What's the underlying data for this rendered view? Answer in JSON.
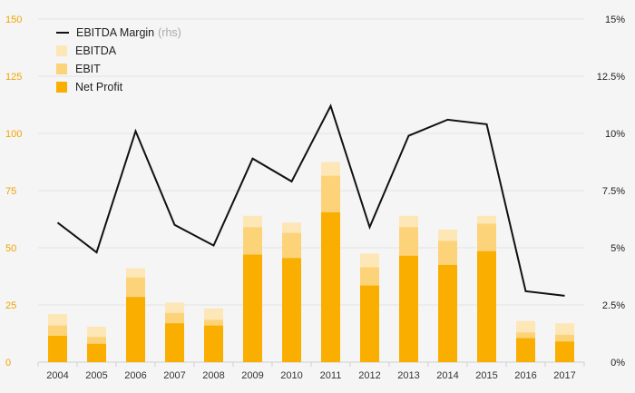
{
  "chart_data": {
    "type": "bar",
    "categories": [
      "2004",
      "2005",
      "2006",
      "2007",
      "2008",
      "2009",
      "2010",
      "2011",
      "2012",
      "2013",
      "2014",
      "2015",
      "2016",
      "2017"
    ],
    "series": [
      {
        "name": "EBITDA",
        "type": "bar",
        "color": "#fde7b6",
        "values": [
          21,
          15.5,
          41,
          26,
          23.5,
          64,
          61,
          87.5,
          47.5,
          64,
          58,
          64,
          18,
          17
        ]
      },
      {
        "name": "EBIT",
        "type": "bar",
        "color": "#fdd37a",
        "values": [
          16,
          11,
          37,
          21.5,
          18.5,
          59,
          56.5,
          81.5,
          41.5,
          59,
          53,
          60.5,
          13,
          12
        ]
      },
      {
        "name": "Net Profit",
        "type": "bar",
        "color": "#f9ae00",
        "values": [
          11.5,
          8,
          28.5,
          17,
          16,
          47,
          45.5,
          65.5,
          33.5,
          46.5,
          42.5,
          48.5,
          10.5,
          9
        ]
      },
      {
        "name": "EBITDA Margin",
        "type": "line",
        "axis": "right",
        "color": "#111111",
        "values": [
          6.1,
          4.8,
          10.1,
          6.0,
          5.1,
          8.9,
          7.9,
          11.2,
          5.9,
          9.9,
          10.6,
          10.4,
          3.1,
          2.9
        ]
      }
    ],
    "legend": {
      "line_label": "EBITDA Margin",
      "line_suffix": "(rhs)",
      "items": [
        "EBITDA",
        "EBIT",
        "Net Profit"
      ]
    },
    "y_left": {
      "ticks": [
        "0",
        "25",
        "50",
        "75",
        "100",
        "125",
        "150"
      ],
      "range": [
        0,
        150
      ],
      "color": "#f0a400"
    },
    "y_right": {
      "ticks": [
        "0%",
        "2.5%",
        "5%",
        "7.5%",
        "10%",
        "12.5%",
        "15%"
      ],
      "range": [
        0,
        15
      ]
    },
    "grid": true,
    "legend_position": "top-left"
  }
}
